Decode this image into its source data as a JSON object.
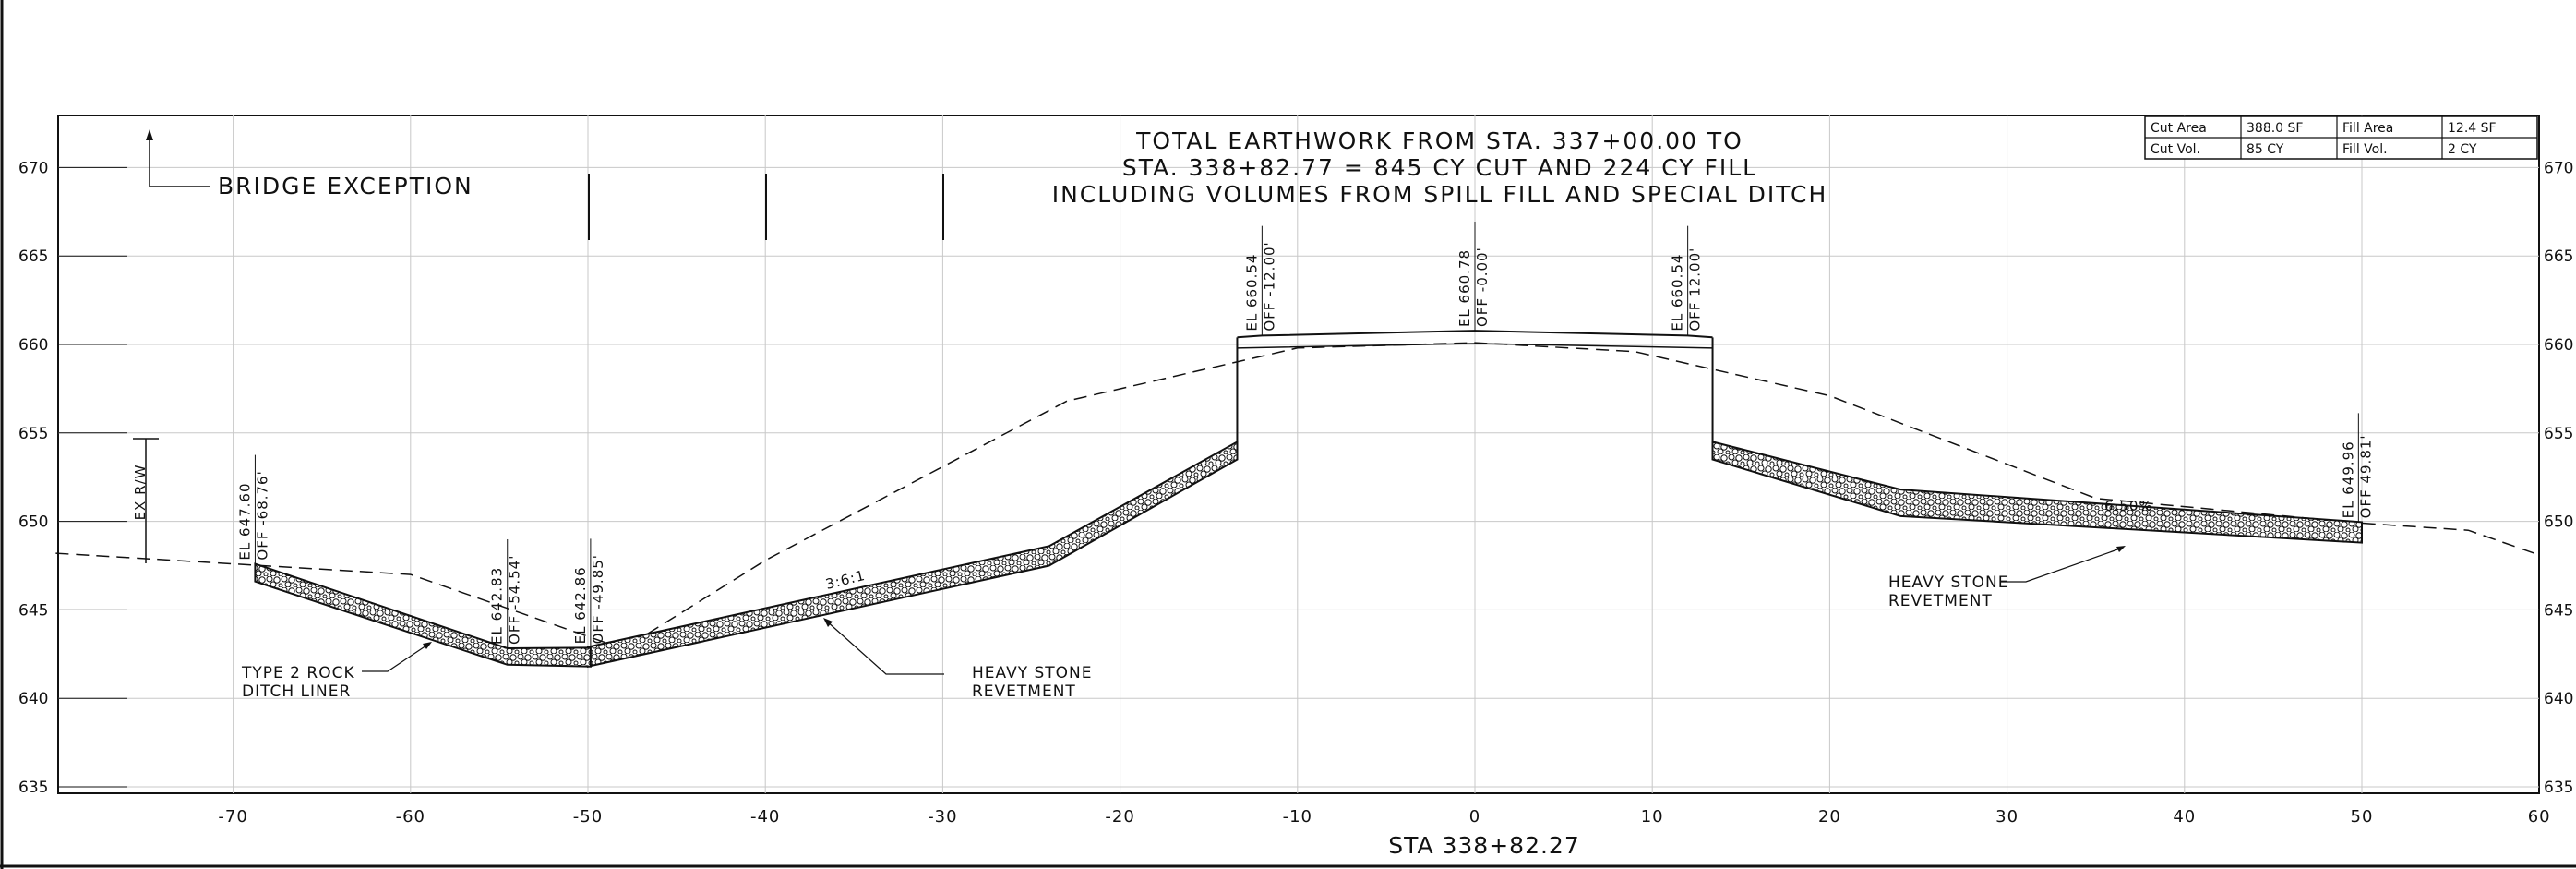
{
  "title_lines": [
    "TOTAL EARTHWORK FROM STA. 337+00.00 TO",
    "STA. 338+82.77 = 845 CY CUT AND 224 CY FILL",
    "INCLUDING VOLUMES FROM SPILL FILL AND SPECIAL DITCH"
  ],
  "station_label": "STA 338+82.27",
  "bridge_exception": "BRIDGE EXCEPTION",
  "ex_rw": "EX R/W",
  "x_ticks": [
    "-70",
    "-60",
    "-50",
    "-40",
    "-30",
    "-20",
    "-10",
    "0",
    "10",
    "20",
    "30",
    "40",
    "50",
    "60"
  ],
  "y_ticks": [
    "670",
    "665",
    "660",
    "655",
    "650",
    "645",
    "640",
    "635"
  ],
  "quantities": {
    "cut_area_label": "Cut Area",
    "cut_area_value": "388.0 SF",
    "fill_area_label": "Fill Area",
    "fill_area_value": "12.4 SF",
    "cut_vol_label": "Cut Vol.",
    "cut_vol_value": "85 CY",
    "fill_vol_label": "Fill Vol.",
    "fill_vol_value": "2 CY"
  },
  "callouts": {
    "ditch_liner": [
      "TYPE 2 ROCK",
      "DITCH LINER"
    ],
    "revetment_left": [
      "HEAVY STONE",
      "REVETMENT"
    ],
    "revetment_right": [
      "HEAVY STONE",
      "REVETMENT"
    ],
    "slope_left": "3:6:1",
    "slope_right": "6.50%"
  },
  "point_labels": [
    {
      "el": "EL 647.60",
      "off": "OFF -68.76'"
    },
    {
      "el": "EL 642.83",
      "off": "OFF -54.54'"
    },
    {
      "el": "EL 642.86",
      "off": "OFF -49.85'"
    },
    {
      "el": "EL 660.54",
      "off": "OFF -12.00'"
    },
    {
      "el": "EL 660.78",
      "off": "OFF -0.00'"
    },
    {
      "el": "EL 660.54",
      "off": "OFF 12.00'"
    },
    {
      "el": "EL 649.96",
      "off": "OFF 49.81'"
    }
  ],
  "chart_data": {
    "type": "line",
    "xlabel": "STA 338+82.27",
    "ylabel": "",
    "xlim": [
      -80,
      60
    ],
    "ylim": [
      635,
      671
    ],
    "grid": true,
    "series": [
      {
        "name": "",
        "style": "dashed",
        "points": [
          [
            -80,
            648.2
          ],
          [
            -60,
            647.0
          ],
          [
            -48,
            642.8
          ],
          [
            -40,
            647.8
          ],
          [
            -23,
            656.8
          ],
          [
            -10,
            659.8
          ],
          [
            0,
            660.1
          ],
          [
            9,
            659.6
          ],
          [
            20,
            657.1
          ],
          [
            35,
            651.3
          ],
          [
            50,
            649.9
          ],
          [
            56,
            649.5
          ],
          [
            60,
            648.1
          ]
        ]
      },
      {
        "name": "",
        "style": "solid",
        "points": [
          [
            -13.4,
            660.4
          ],
          [
            -12,
            660.5
          ],
          [
            0,
            660.78
          ],
          [
            12,
            660.5
          ],
          [
            13.4,
            660.4
          ]
        ]
      },
      {
        "name": "",
        "style": "revetment",
        "points": [
          [
            -50,
            642.9
          ],
          [
            -24,
            648.6
          ],
          [
            -13.4,
            654.5
          ],
          [
            -13.4,
            653.5
          ],
          [
            -24,
            647.5
          ],
          [
            -50,
            641.8
          ]
        ]
      },
      {
        "name": "",
        "style": "revetment",
        "points": [
          [
            13.4,
            654.5
          ],
          [
            24,
            651.8
          ],
          [
            50,
            649.96
          ],
          [
            50,
            648.8
          ],
          [
            24,
            650.3
          ],
          [
            13.4,
            653.5
          ]
        ]
      },
      {
        "name": "",
        "style": "ditch",
        "points": [
          [
            -68.76,
            647.6
          ],
          [
            -54.54,
            642.83
          ],
          [
            -49.85,
            642.86
          ],
          [
            -49.85,
            641.8
          ],
          [
            -54.54,
            641.9
          ],
          [
            -68.76,
            646.6
          ]
        ]
      }
    ]
  }
}
